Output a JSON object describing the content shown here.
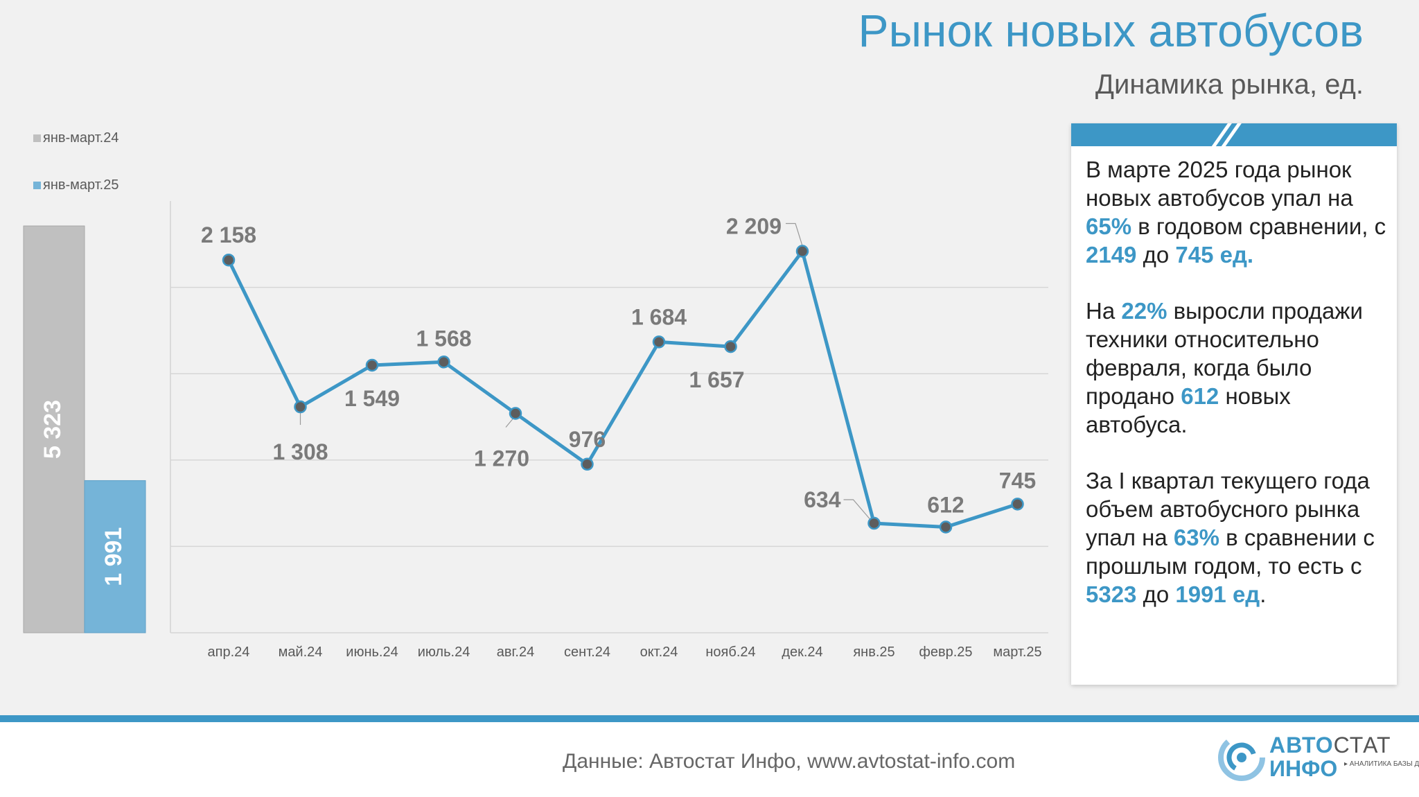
{
  "header": {
    "title": "Рынок новых автобусов",
    "subtitle": "Динамика рынка, ед."
  },
  "colors": {
    "accent": "#3d97c6",
    "bar_2024": "#c0c0c0",
    "bar_2025": "#75b4d8",
    "line": "#3d97c6",
    "marker": "#5d5d5d"
  },
  "legend": {
    "item_2024": "янв-март.24",
    "item_2025": "янв-март.25"
  },
  "chart_data": [
    {
      "type": "bar",
      "categories": [
        "янв-март.24",
        "янв-март.25"
      ],
      "values": [
        5323,
        1991
      ],
      "value_labels": [
        "5 323",
        "1 991"
      ],
      "ylim": [
        0,
        5323
      ],
      "legend_position": "top-left"
    },
    {
      "type": "line",
      "categories": [
        "апр.24",
        "май.24",
        "июнь.24",
        "июль.24",
        "авг.24",
        "сент.24",
        "окт.24",
        "нояб.24",
        "дек.24",
        "янв.25",
        "февр.25",
        "март.25"
      ],
      "values": [
        2158,
        1308,
        1549,
        1568,
        1270,
        976,
        1684,
        1657,
        2209,
        634,
        612,
        745
      ],
      "value_labels": [
        "2 158",
        "1 308",
        "1 549",
        "1 568",
        "1 270",
        "976",
        "1 684",
        "1 657",
        "2 209",
        "634",
        "612",
        "745"
      ],
      "ylim": [
        0,
        2500
      ],
      "grid": true
    }
  ],
  "info": {
    "p1": [
      "В марте 2025 года рынок новых автобусов упал на ",
      "65%",
      " в годовом сравнении, с ",
      "2149",
      " до ",
      "745 ед."
    ],
    "p2": [
      "На ",
      "22%",
      " выросли продажи техники относительно февраля, когда было продано ",
      "612",
      " новых автобуса."
    ],
    "p3": [
      "За I квартал текущего года объем автобусного рынка упал на ",
      "63%",
      " в сравнении с прошлым годом, то есть с ",
      "5323",
      " до ",
      "1991 ед",
      "."
    ]
  },
  "footer": {
    "source": "Данные: Автостат Инфо, www.avtostat-info.com",
    "logo_top_a": "АВТО",
    "logo_top_b": "СТАТ",
    "logo_bottom": "ИНФО",
    "logo_tag": "▸ АНАЛИТИКА БАЗЫ ДАННЫХ"
  }
}
